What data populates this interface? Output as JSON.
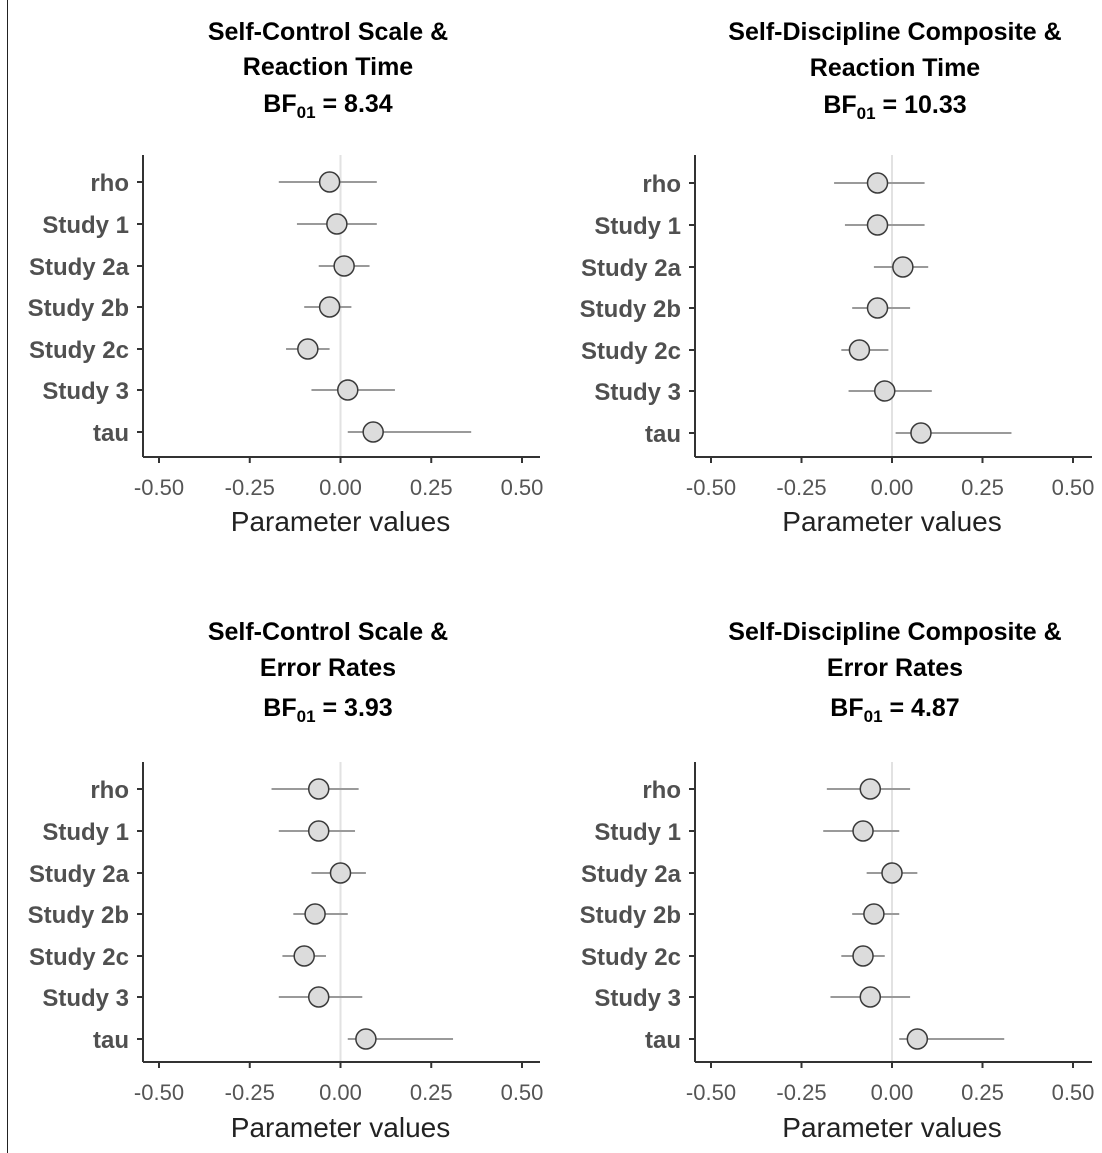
{
  "colors": {
    "axis": "#333333",
    "tick_label": "#555555",
    "category_label": "#505050",
    "title": "#000000",
    "interval_line": "#9a9a9a",
    "zero_line": "#e2e2e2",
    "point_fill": "#dcdcdc",
    "point_stroke": "#3a3a3a"
  },
  "chart_data": [
    {
      "type": "forest",
      "title_lines": [
        "Self-Control Scale &",
        "Reaction Time"
      ],
      "bf_label": "BF",
      "bf_subscript": "01",
      "bf_value": "= 8.34",
      "xlabel": "Parameter values",
      "xlim": [
        -0.5,
        0.5
      ],
      "xticks": [
        -0.5,
        -0.25,
        0.0,
        0.25,
        0.5
      ],
      "xtick_labels": [
        "-0.50",
        "-0.25",
        "0.00",
        "0.25",
        "0.50"
      ],
      "categories": [
        "rho",
        "Study 1",
        "Study 2a",
        "Study 2b",
        "Study 2c",
        "Study 3",
        "tau"
      ],
      "estimates": [
        -0.03,
        -0.01,
        0.01,
        -0.03,
        -0.09,
        0.02,
        0.09
      ],
      "lower": [
        -0.17,
        -0.12,
        -0.06,
        -0.1,
        -0.15,
        -0.08,
        0.02
      ],
      "upper": [
        0.1,
        0.1,
        0.08,
        0.03,
        -0.03,
        0.15,
        0.36
      ]
    },
    {
      "type": "forest",
      "title_lines": [
        "Self-Discipline Composite &",
        "Reaction Time"
      ],
      "bf_label": "BF",
      "bf_subscript": "01",
      "bf_value": "= 10.33",
      "xlabel": "Parameter values",
      "xlim": [
        -0.5,
        0.5
      ],
      "xticks": [
        -0.5,
        -0.25,
        0.0,
        0.25,
        0.5
      ],
      "xtick_labels": [
        "-0.50",
        "-0.25",
        "0.00",
        "0.25",
        "0.50"
      ],
      "categories": [
        "rho",
        "Study 1",
        "Study 2a",
        "Study 2b",
        "Study 2c",
        "Study 3",
        "tau"
      ],
      "estimates": [
        -0.04,
        -0.04,
        0.03,
        -0.04,
        -0.09,
        -0.02,
        0.08
      ],
      "lower": [
        -0.16,
        -0.13,
        -0.05,
        -0.11,
        -0.14,
        -0.12,
        0.01
      ],
      "upper": [
        0.09,
        0.09,
        0.1,
        0.05,
        -0.01,
        0.11,
        0.33
      ]
    },
    {
      "type": "forest",
      "title_lines": [
        "Self-Control Scale &",
        "Error Rates"
      ],
      "bf_label": "BF",
      "bf_subscript": "01",
      "bf_value": "= 3.93",
      "xlabel": "Parameter values",
      "xlim": [
        -0.5,
        0.5
      ],
      "xticks": [
        -0.5,
        -0.25,
        0.0,
        0.25,
        0.5
      ],
      "xtick_labels": [
        "-0.50",
        "-0.25",
        "0.00",
        "0.25",
        "0.50"
      ],
      "categories": [
        "rho",
        "Study 1",
        "Study 2a",
        "Study 2b",
        "Study 2c",
        "Study 3",
        "tau"
      ],
      "estimates": [
        -0.06,
        -0.06,
        0.0,
        -0.07,
        -0.1,
        -0.06,
        0.07
      ],
      "lower": [
        -0.19,
        -0.17,
        -0.08,
        -0.13,
        -0.16,
        -0.17,
        0.02
      ],
      "upper": [
        0.05,
        0.04,
        0.07,
        0.02,
        -0.04,
        0.06,
        0.31
      ]
    },
    {
      "type": "forest",
      "title_lines": [
        "Self-Discipline Composite &",
        "Error Rates"
      ],
      "bf_label": "BF",
      "bf_subscript": "01",
      "bf_value": "= 4.87",
      "xlabel": "Parameter values",
      "xlim": [
        -0.5,
        0.5
      ],
      "xticks": [
        -0.5,
        -0.25,
        0.0,
        0.25,
        0.5
      ],
      "xtick_labels": [
        "-0.50",
        "-0.25",
        "0.00",
        "0.25",
        "0.50"
      ],
      "categories": [
        "rho",
        "Study 1",
        "Study 2a",
        "Study 2b",
        "Study 2c",
        "Study 3",
        "tau"
      ],
      "estimates": [
        -0.06,
        -0.08,
        0.0,
        -0.05,
        -0.08,
        -0.06,
        0.07
      ],
      "lower": [
        -0.18,
        -0.19,
        -0.07,
        -0.11,
        -0.14,
        -0.17,
        0.02
      ],
      "upper": [
        0.05,
        0.02,
        0.07,
        0.02,
        -0.02,
        0.05,
        0.31
      ]
    }
  ]
}
